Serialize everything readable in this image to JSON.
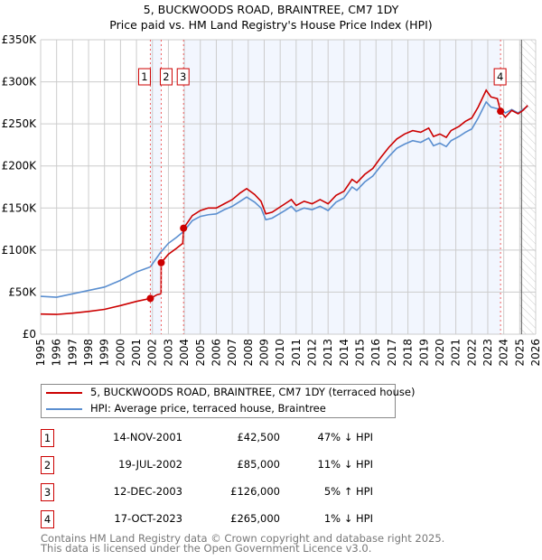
{
  "title": "5, BUCKWOODS ROAD, BRAINTREE, CM7 1DY",
  "subtitle": "Price paid vs. HM Land Registry's House Price Index (HPI)",
  "chart_data": {
    "type": "line",
    "title": "5, BUCKWOODS ROAD, BRAINTREE, CM7 1DY",
    "subtitle": "Price paid vs. HM Land Registry's House Price Index (HPI)",
    "xlim": [
      1995,
      2026
    ],
    "ylim": [
      0,
      350000
    ],
    "x_ticks": [
      "1995",
      "1996",
      "1997",
      "1998",
      "1999",
      "2000",
      "2001",
      "2002",
      "2003",
      "2004",
      "2005",
      "2006",
      "2007",
      "2008",
      "2009",
      "2010",
      "2011",
      "2012",
      "2013",
      "2014",
      "2015",
      "2016",
      "2017",
      "2018",
      "2019",
      "2020",
      "2021",
      "2022",
      "2023",
      "2024",
      "2025",
      "2026"
    ],
    "y_ticks": [
      {
        "v": 0,
        "label": "£0"
      },
      {
        "v": 50000,
        "label": "£50K"
      },
      {
        "v": 100000,
        "label": "£100K"
      },
      {
        "v": 150000,
        "label": "£150K"
      },
      {
        "v": 200000,
        "label": "£200K"
      },
      {
        "v": 250000,
        "label": "£250K"
      },
      {
        "v": 300000,
        "label": "£300K"
      },
      {
        "v": 350000,
        "label": "£350K"
      }
    ],
    "grid": true,
    "series": [
      {
        "name": "5, BUCKWOODS ROAD, BRAINTREE, CM7 1DY (terraced house)",
        "color": "#cc0000",
        "points": [
          [
            1995,
            24000
          ],
          [
            1996,
            23500
          ],
          [
            1997,
            25000
          ],
          [
            1998,
            27000
          ],
          [
            1999,
            29500
          ],
          [
            2000,
            34000
          ],
          [
            2001,
            39000
          ],
          [
            2001.87,
            42500
          ],
          [
            2002.3,
            47000
          ],
          [
            2002.54,
            48000
          ],
          [
            2002.55,
            85000
          ],
          [
            2003,
            95000
          ],
          [
            2003.5,
            102000
          ],
          [
            2003.9,
            108000
          ],
          [
            2003.95,
            126000
          ],
          [
            2004.5,
            141000
          ],
          [
            2005,
            147000
          ],
          [
            2005.5,
            150000
          ],
          [
            2006,
            150000
          ],
          [
            2006.5,
            155000
          ],
          [
            2007,
            160000
          ],
          [
            2007.5,
            168000
          ],
          [
            2007.9,
            173000
          ],
          [
            2008.4,
            166000
          ],
          [
            2008.8,
            158000
          ],
          [
            2009.1,
            143000
          ],
          [
            2009.5,
            145000
          ],
          [
            2010.3,
            155000
          ],
          [
            2010.7,
            160000
          ],
          [
            2011,
            153000
          ],
          [
            2011.5,
            158000
          ],
          [
            2012,
            155000
          ],
          [
            2012.5,
            160000
          ],
          [
            2013,
            155000
          ],
          [
            2013.5,
            165000
          ],
          [
            2014,
            170000
          ],
          [
            2014.5,
            184000
          ],
          [
            2014.8,
            180000
          ],
          [
            2015.3,
            190000
          ],
          [
            2015.8,
            197000
          ],
          [
            2016.3,
            210000
          ],
          [
            2016.8,
            222000
          ],
          [
            2017.3,
            232000
          ],
          [
            2017.8,
            238000
          ],
          [
            2018.3,
            242000
          ],
          [
            2018.8,
            240000
          ],
          [
            2019.3,
            245000
          ],
          [
            2019.6,
            235000
          ],
          [
            2020,
            238000
          ],
          [
            2020.4,
            234000
          ],
          [
            2020.7,
            242000
          ],
          [
            2021.2,
            247000
          ],
          [
            2021.6,
            253000
          ],
          [
            2022,
            257000
          ],
          [
            2022.4,
            270000
          ],
          [
            2022.9,
            290000
          ],
          [
            2023.2,
            282000
          ],
          [
            2023.6,
            280000
          ],
          [
            2023.8,
            265000
          ],
          [
            2024.1,
            258000
          ],
          [
            2024.5,
            266000
          ],
          [
            2024.9,
            262000
          ],
          [
            2025.2,
            266000
          ],
          [
            2025.5,
            272000
          ]
        ]
      },
      {
        "name": "HPI: Average price, terraced house, Braintree",
        "color": "#5b8fd0",
        "points": [
          [
            1995,
            45000
          ],
          [
            1996,
            44000
          ],
          [
            1997,
            48000
          ],
          [
            1998,
            52000
          ],
          [
            1999,
            56000
          ],
          [
            2000,
            64000
          ],
          [
            2001,
            74000
          ],
          [
            2001.87,
            80000
          ],
          [
            2002.5,
            97000
          ],
          [
            2003,
            108000
          ],
          [
            2003.5,
            115000
          ],
          [
            2003.95,
            122000
          ],
          [
            2004.5,
            135000
          ],
          [
            2005,
            140000
          ],
          [
            2005.5,
            142000
          ],
          [
            2006,
            143000
          ],
          [
            2006.5,
            148000
          ],
          [
            2007,
            152000
          ],
          [
            2007.5,
            158000
          ],
          [
            2007.9,
            163000
          ],
          [
            2008.4,
            157000
          ],
          [
            2008.8,
            150000
          ],
          [
            2009.1,
            136000
          ],
          [
            2009.5,
            138000
          ],
          [
            2010.3,
            147000
          ],
          [
            2010.7,
            152000
          ],
          [
            2011,
            146000
          ],
          [
            2011.5,
            150000
          ],
          [
            2012,
            148000
          ],
          [
            2012.5,
            152000
          ],
          [
            2013,
            147000
          ],
          [
            2013.5,
            157000
          ],
          [
            2014,
            162000
          ],
          [
            2014.5,
            175000
          ],
          [
            2014.8,
            171000
          ],
          [
            2015.3,
            181000
          ],
          [
            2015.8,
            188000
          ],
          [
            2016.3,
            200000
          ],
          [
            2016.8,
            211000
          ],
          [
            2017.3,
            221000
          ],
          [
            2017.8,
            226000
          ],
          [
            2018.3,
            230000
          ],
          [
            2018.8,
            228000
          ],
          [
            2019.3,
            233000
          ],
          [
            2019.6,
            224000
          ],
          [
            2020,
            227000
          ],
          [
            2020.4,
            223000
          ],
          [
            2020.7,
            230000
          ],
          [
            2021.2,
            235000
          ],
          [
            2021.6,
            240000
          ],
          [
            2022,
            244000
          ],
          [
            2022.4,
            257000
          ],
          [
            2022.9,
            276000
          ],
          [
            2023.2,
            270000
          ],
          [
            2023.6,
            268000
          ],
          [
            2023.8,
            268000
          ],
          [
            2024.1,
            263000
          ],
          [
            2024.5,
            267000
          ],
          [
            2024.9,
            263000
          ],
          [
            2025.2,
            267000
          ],
          [
            2025.5,
            271000
          ]
        ]
      }
    ],
    "sales": [
      {
        "id": "1",
        "x": 2001.87,
        "price": 42500
      },
      {
        "id": "2",
        "x": 2002.55,
        "price": 85000
      },
      {
        "id": "3",
        "x": 2003.95,
        "price": 126000
      },
      {
        "id": "4",
        "x": 2023.8,
        "price": 265000
      }
    ],
    "shaded_ranges": [
      [
        2001.87,
        2002.55
      ],
      [
        2003.95,
        2023.8
      ]
    ],
    "forecast_hatch_from": 2025.0,
    "legend_position": "below"
  },
  "legend": [
    {
      "label": "5, BUCKWOODS ROAD, BRAINTREE, CM7 1DY (terraced house)",
      "color": "#cc0000"
    },
    {
      "label": "HPI: Average price, terraced house, Braintree",
      "color": "#5b8fd0"
    }
  ],
  "transactions": [
    {
      "id": "1",
      "date": "14-NOV-2001",
      "price": "£42,500",
      "hpi": "47% ↓ HPI"
    },
    {
      "id": "2",
      "date": "19-JUL-2002",
      "price": "£85,000",
      "hpi": "11% ↓ HPI"
    },
    {
      "id": "3",
      "date": "12-DEC-2003",
      "price": "£126,000",
      "hpi": "5% ↑ HPI"
    },
    {
      "id": "4",
      "date": "17-OCT-2023",
      "price": "£265,000",
      "hpi": "1% ↓ HPI"
    }
  ],
  "footer": [
    "Contains HM Land Registry data © Crown copyright and database right 2025.",
    "This data is licensed under the Open Government Licence v3.0."
  ]
}
